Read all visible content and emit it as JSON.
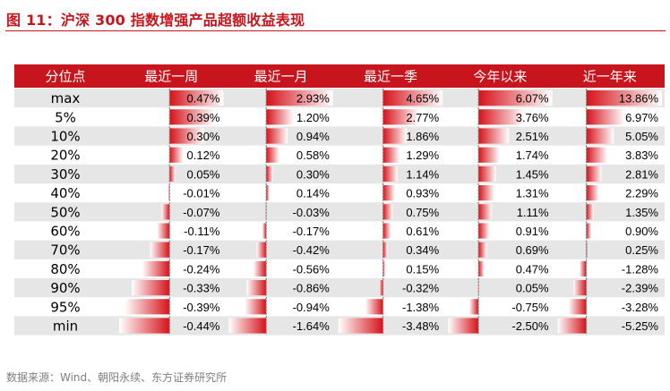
{
  "title": "图 11：沪深 300 指数增强产品超额收益表现",
  "source": "数据来源：Wind、朝阳永续、东方证券研究所",
  "colors": {
    "accent": "#c8141c",
    "bar_dark": "#d5121a",
    "bar_light": "#ffffff",
    "row_stripe": "#e6e6e6",
    "zero_line": "#7f7f7f"
  },
  "chart_data": {
    "type": "table",
    "header_label": "分位点",
    "columns": [
      "最近一周",
      "最近一月",
      "最近一季",
      "今年以来",
      "近一年来"
    ],
    "rows": [
      {
        "label": "max",
        "values": [
          0.47,
          2.93,
          4.65,
          6.07,
          13.86
        ],
        "text": [
          "0.47%",
          "2.93%",
          "4.65%",
          "6.07%",
          "13.86%"
        ]
      },
      {
        "label": "5%",
        "values": [
          0.39,
          1.2,
          2.77,
          3.76,
          6.97
        ],
        "text": [
          "0.39%",
          "1.20%",
          "2.77%",
          "3.76%",
          "6.97%"
        ]
      },
      {
        "label": "10%",
        "values": [
          0.3,
          0.94,
          1.86,
          2.51,
          5.05
        ],
        "text": [
          "0.30%",
          "0.94%",
          "1.86%",
          "2.51%",
          "5.05%"
        ]
      },
      {
        "label": "20%",
        "values": [
          0.12,
          0.58,
          1.29,
          1.74,
          3.83
        ],
        "text": [
          "0.12%",
          "0.58%",
          "1.29%",
          "1.74%",
          "3.83%"
        ]
      },
      {
        "label": "30%",
        "values": [
          0.05,
          0.3,
          1.14,
          1.45,
          2.81
        ],
        "text": [
          "0.05%",
          "0.30%",
          "1.14%",
          "1.45%",
          "2.81%"
        ]
      },
      {
        "label": "40%",
        "values": [
          -0.01,
          0.14,
          0.93,
          1.31,
          2.29
        ],
        "text": [
          "-0.01%",
          "0.14%",
          "0.93%",
          "1.31%",
          "2.29%"
        ]
      },
      {
        "label": "50%",
        "values": [
          -0.07,
          -0.03,
          0.75,
          1.11,
          1.35
        ],
        "text": [
          "-0.07%",
          "-0.03%",
          "0.75%",
          "1.11%",
          "1.35%"
        ]
      },
      {
        "label": "60%",
        "values": [
          -0.11,
          -0.17,
          0.61,
          0.91,
          0.9
        ],
        "text": [
          "-0.11%",
          "-0.17%",
          "0.61%",
          "0.91%",
          "0.90%"
        ]
      },
      {
        "label": "70%",
        "values": [
          -0.17,
          -0.42,
          0.34,
          0.69,
          0.25
        ],
        "text": [
          "-0.17%",
          "-0.42%",
          "0.34%",
          "0.69%",
          "0.25%"
        ]
      },
      {
        "label": "80%",
        "values": [
          -0.24,
          -0.56,
          0.15,
          0.47,
          -1.28
        ],
        "text": [
          "-0.24%",
          "-0.56%",
          "0.15%",
          "0.47%",
          "-1.28%"
        ]
      },
      {
        "label": "90%",
        "values": [
          -0.33,
          -0.86,
          -0.32,
          0.05,
          -2.39
        ],
        "text": [
          "-0.33%",
          "-0.86%",
          "-0.32%",
          "0.05%",
          "-2.39%"
        ]
      },
      {
        "label": "95%",
        "values": [
          -0.39,
          -0.94,
          -1.38,
          -0.75,
          -3.28
        ],
        "text": [
          "-0.39%",
          "-0.94%",
          "-1.38%",
          "-0.75%",
          "-3.28%"
        ]
      },
      {
        "label": "min",
        "values": [
          -0.44,
          -1.64,
          -3.48,
          -2.5,
          -5.25
        ],
        "text": [
          "-0.44%",
          "-1.64%",
          "-3.48%",
          "-2.50%",
          "-5.25%"
        ]
      }
    ]
  }
}
